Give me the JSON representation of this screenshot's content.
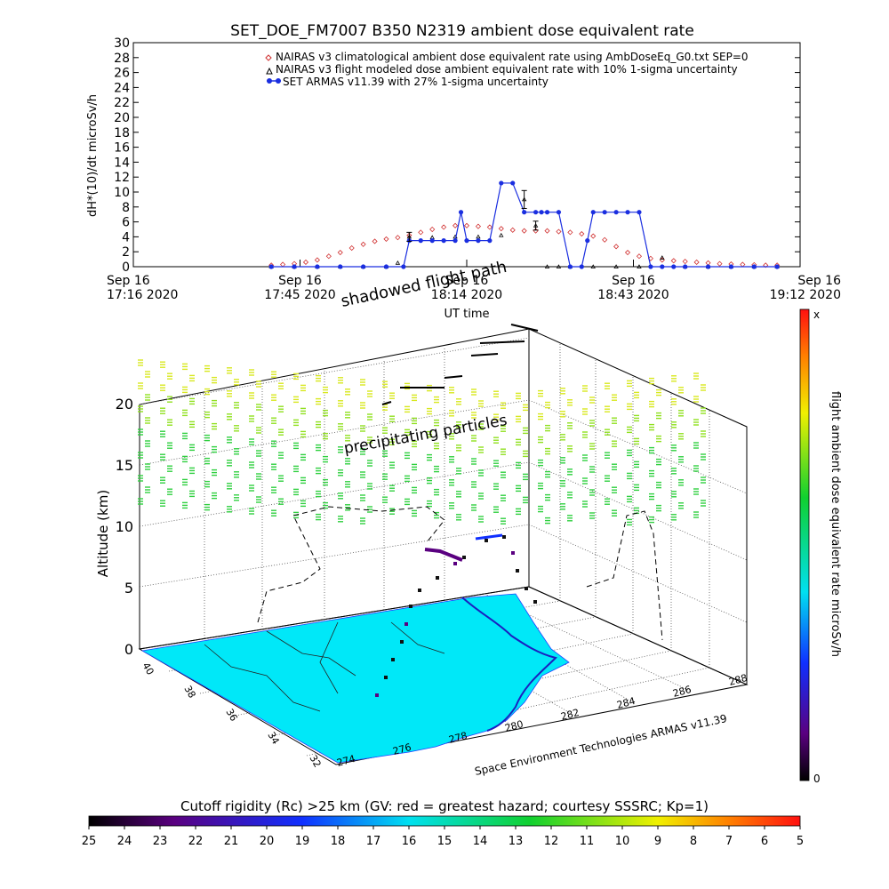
{
  "title": "SET_DOE_FM7007  B350   N2319  ambient dose equivalent rate",
  "top_chart": {
    "ylabel": "dH*(10)/dt microSv/h",
    "xlabel": "UT time",
    "yticks": [
      "0",
      "2",
      "4",
      "6",
      "8",
      "10",
      "12",
      "14",
      "16",
      "18",
      "20",
      "22",
      "24",
      "26",
      "28",
      "30"
    ],
    "xticks": [
      {
        "line1": "Sep 16",
        "line2": "17:16 2020"
      },
      {
        "line1": "Sep 16",
        "line2": "17:45 2020"
      },
      {
        "line1": "Sep 16",
        "line2": "18:14 2020"
      },
      {
        "line1": "Sep 16",
        "line2": "18:43 2020"
      },
      {
        "line1": "Sep 16",
        "line2": "19:12 2020"
      }
    ],
    "legend": [
      "NAIRAS v3 climatological ambient dose equivalent rate using AmbDoseEq_G0.txt SEP=0",
      "NAIRAS v3 flight modeled dose ambient equivalent rate with 10% 1-sigma uncertainty",
      "SET ARMAS v11.39 with 27% 1-sigma uncertainty"
    ]
  },
  "chart_data": [
    {
      "type": "line",
      "title": "SET_DOE_FM7007  B350   N2319  ambient dose equivalent rate",
      "xlabel": "UT time",
      "ylabel": "dH*(10)/dt microSv/h",
      "x_unit": "minutes after Sep 16 17:16 2020 UT",
      "xlim": [
        0,
        116
      ],
      "ylim": [
        0,
        30
      ],
      "grid": false,
      "legend_position": "top-right",
      "series": [
        {
          "name": "NAIRAS v3 climatological ambient dose equivalent rate using AmbDoseEq_G0.txt SEP=0",
          "color": "#d03030",
          "marker": "diamond",
          "x": [
            24,
            26,
            28,
            30,
            32,
            34,
            36,
            38,
            40,
            42,
            44,
            46,
            48,
            50,
            52,
            54,
            56,
            58,
            60,
            62,
            64,
            66,
            68,
            70,
            72,
            74,
            76,
            78,
            80,
            82,
            84,
            86,
            88,
            90,
            92,
            94,
            96,
            98,
            100,
            102,
            104,
            106,
            108,
            110,
            112
          ],
          "y": [
            0.2,
            0.3,
            0.4,
            0.6,
            0.9,
            1.4,
            1.9,
            2.5,
            3.0,
            3.4,
            3.7,
            3.9,
            4.2,
            4.6,
            5.0,
            5.3,
            5.5,
            5.5,
            5.4,
            5.3,
            5.1,
            4.9,
            4.8,
            4.8,
            4.8,
            4.7,
            4.6,
            4.4,
            4.1,
            3.6,
            2.7,
            1.9,
            1.4,
            1.1,
            0.9,
            0.8,
            0.7,
            0.6,
            0.5,
            0.4,
            0.35,
            0.3,
            0.25,
            0.2,
            0.2
          ]
        },
        {
          "name": "NAIRAS v3 flight modeled dose ambient equivalent rate with 10% 1-sigma uncertainty",
          "color": "#000000",
          "marker": "triangle",
          "x": [
            24,
            28,
            32,
            36,
            40,
            44,
            46,
            48,
            52,
            56,
            60,
            64,
            68,
            70,
            72,
            74,
            76,
            80,
            84,
            88,
            92,
            96,
            100,
            104,
            108,
            112
          ],
          "y": [
            0,
            0,
            0,
            0,
            0,
            0,
            0.5,
            4.0,
            3.9,
            4.0,
            4.0,
            4.2,
            9.0,
            5.5,
            0,
            0,
            0,
            0,
            0,
            0,
            1.2,
            0,
            0,
            0,
            0,
            0
          ]
        },
        {
          "name": "SET ARMAS v11.39 with 27% 1-sigma uncertainty",
          "color": "#1a2ee0",
          "marker": "circle",
          "x": [
            24,
            28,
            32,
            36,
            40,
            44,
            47,
            48,
            50,
            52,
            54,
            56,
            57,
            58,
            60,
            62,
            64,
            66,
            68,
            70,
            71,
            72,
            74,
            76,
            78,
            79,
            80,
            82,
            84,
            86,
            88,
            90,
            92,
            94,
            96,
            100,
            104,
            108,
            112
          ],
          "y": [
            0,
            0,
            0,
            0,
            0,
            0,
            0,
            3.5,
            3.5,
            3.5,
            3.5,
            3.5,
            7.3,
            3.5,
            3.5,
            3.5,
            11.2,
            11.2,
            7.3,
            7.3,
            7.3,
            7.3,
            7.3,
            0,
            0,
            3.5,
            7.3,
            7.3,
            7.3,
            7.3,
            7.3,
            0,
            0,
            0,
            0,
            0,
            0,
            0,
            0
          ]
        }
      ]
    },
    {
      "type": "scatter",
      "title": "",
      "xlabel": "",
      "ylabel": "Altitude (km)",
      "zticks": [
        "0",
        "5",
        "10",
        "15",
        "20"
      ],
      "latitude_ticks": [
        "40",
        "38",
        "36",
        "34",
        "32"
      ],
      "longitude_ticks": [
        "274",
        "276",
        "278",
        "280",
        "282",
        "284",
        "286",
        "288"
      ],
      "annotations": [
        "shadowed flight path",
        "precipitating particles"
      ],
      "credit": "Space Environment Technologies ARMAS v11.39",
      "colorbar_label": "flight ambient dose equivalent rate microSv/h",
      "colorbar_top": "x",
      "colorbar_bottom": "0",
      "flight_track": {
        "name": "flight path",
        "x_minutes": [
          24,
          36,
          48,
          56,
          64,
          68,
          76,
          84,
          92,
          100,
          112
        ],
        "altitude_km": [
          0.5,
          4,
          7,
          8.5,
          10,
          10.5,
          10.5,
          9,
          6,
          3,
          0.5
        ]
      }
    },
    {
      "type": "heatmap",
      "title": "Cutoff rigidity (Rc) >25 km (GV: red = greatest hazard; courtesy SSSRC; Kp=1)",
      "colorbar_ticks": [
        "25",
        "24",
        "23",
        "22",
        "21",
        "20",
        "19",
        "18",
        "17",
        "16",
        "15",
        "14",
        "13",
        "12",
        "11",
        "10",
        "9",
        "8",
        "7",
        "6",
        "5"
      ]
    }
  ]
}
